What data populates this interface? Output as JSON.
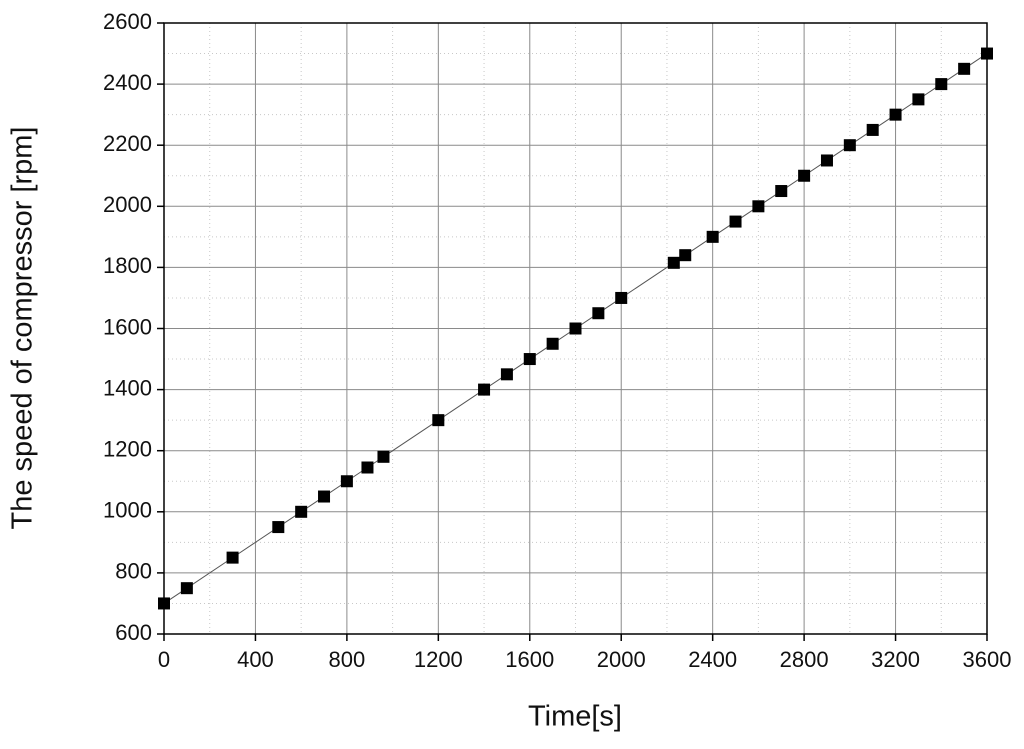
{
  "chart_data": {
    "type": "line",
    "x_label": "Time[s]",
    "y_label": "The speed of compressor [rpm]",
    "x": [
      0,
      100,
      300,
      500,
      600,
      700,
      800,
      890,
      960,
      1200,
      1400,
      1500,
      1600,
      1700,
      1800,
      1900,
      2000,
      2230,
      2280,
      2400,
      2500,
      2600,
      2700,
      2800,
      2900,
      3000,
      3100,
      3200,
      3300,
      3400,
      3500,
      3600
    ],
    "series": [
      {
        "color": "#000000",
        "values": [
          700,
          750,
          850,
          950,
          1000,
          1050,
          1100,
          1145,
          1180,
          1300,
          1400,
          1450,
          1500,
          1550,
          1600,
          1650,
          1700,
          1815,
          1840,
          1900,
          1950,
          2000,
          2050,
          2100,
          2150,
          2200,
          2250,
          2300,
          2350,
          2400,
          2450,
          2500
        ]
      }
    ],
    "xlim": [
      0,
      3600
    ],
    "xticks": [
      0,
      400,
      800,
      1200,
      1600,
      2000,
      2400,
      2800,
      3200,
      3600
    ],
    "ylim": [
      600,
      2600
    ],
    "yticks": [
      600,
      800,
      1000,
      1200,
      1400,
      1600,
      1800,
      2000,
      2200,
      2400,
      2600
    ],
    "grid": true,
    "minor_grid": true,
    "marker": "square"
  }
}
